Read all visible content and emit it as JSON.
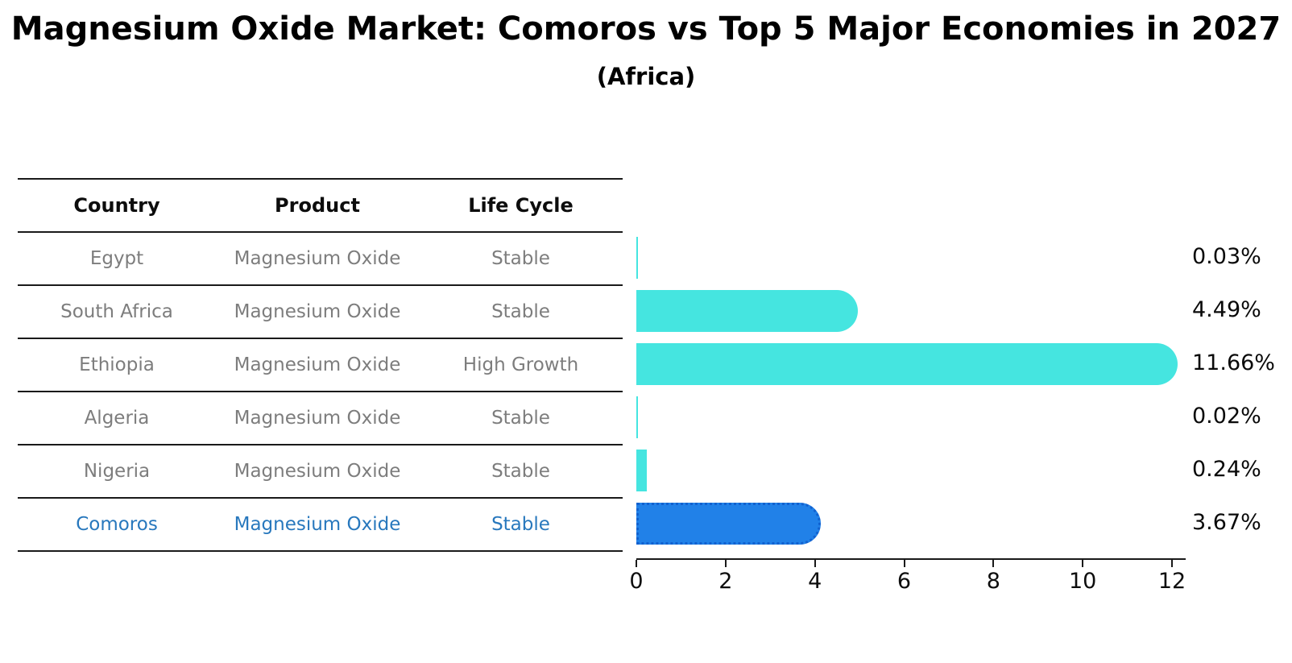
{
  "title": "Magnesium Oxide Market: Comoros vs Top 5 Major Economies in 2027",
  "subtitle": "(Africa)",
  "table": {
    "headers": [
      "Country",
      "Product",
      "Life Cycle"
    ],
    "rows": [
      {
        "country": "Egypt",
        "product": "Magnesium Oxide",
        "life_cycle": "Stable",
        "highlight": false
      },
      {
        "country": "South Africa",
        "product": "Magnesium Oxide",
        "life_cycle": "Stable",
        "highlight": false
      },
      {
        "country": "Ethiopia",
        "product": "Magnesium Oxide",
        "life_cycle": "High Growth",
        "highlight": false
      },
      {
        "country": "Algeria",
        "product": "Magnesium Oxide",
        "life_cycle": "Stable",
        "highlight": false
      },
      {
        "country": "Nigeria",
        "product": "Magnesium Oxide",
        "life_cycle": "Stable",
        "highlight": false
      },
      {
        "country": "Comoros",
        "product": "Magnesium Oxide",
        "life_cycle": "Stable",
        "highlight": true
      }
    ]
  },
  "chart_data": {
    "type": "bar",
    "orientation": "horizontal",
    "title": "Magnesium Oxide Market: Comoros vs Top 5 Major Economies in 2027 (Africa)",
    "categories": [
      "Egypt",
      "South Africa",
      "Ethiopia",
      "Algeria",
      "Nigeria",
      "Comoros"
    ],
    "values": [
      0.03,
      4.49,
      11.66,
      0.02,
      0.24,
      3.67
    ],
    "value_labels": [
      "0.03%",
      "4.49%",
      "11.66%",
      "0.02%",
      "0.24%",
      "3.67%"
    ],
    "xlabel": "",
    "ylabel": "",
    "xlim": [
      0,
      12
    ],
    "x_ticks": [
      0,
      2,
      4,
      6,
      8,
      10,
      12
    ],
    "grid": false,
    "legend": "none",
    "bar_color": "#45e5e0",
    "highlight_bar_color": "#2181e8",
    "highlight_border_color": "#1261cf",
    "highlight_index": 5,
    "highlight_category": "Comoros",
    "highlight_text_color": "#2878bd"
  }
}
